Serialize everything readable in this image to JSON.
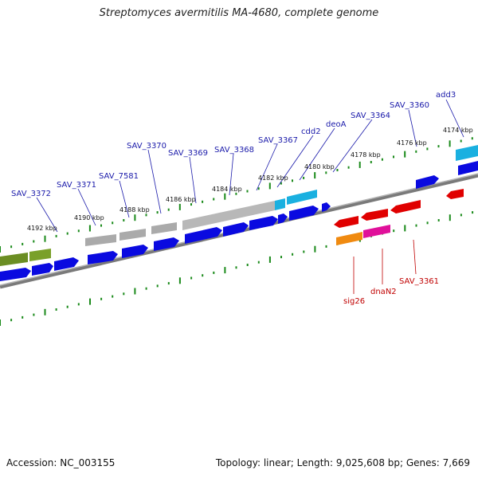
{
  "title": "Streptomyces avermitilis MA-4680, complete genome",
  "footer": {
    "accession": "Accession: NC_003155",
    "topology": "Topology: linear; Length: 9,025,608 bp; Genes: 7,669"
  },
  "scale_ticks": [
    "4192 kbp",
    "4190 kbp",
    "4188 kbp",
    "4186 kbp",
    "4184 kbp",
    "4182 kbp",
    "4180 kbp",
    "4178 kbp",
    "4176 kbp",
    "4174 kbp"
  ],
  "forward_gene_labels": [
    "SAV_3372",
    "SAV_3371",
    "SAV_7581",
    "SAV_3370",
    "SAV_3369",
    "SAV_3368",
    "SAV_3367",
    "cdd2",
    "deoA",
    "SAV_3364",
    "SAV_3360",
    "add3"
  ],
  "reverse_gene_labels": [
    "sig26",
    "dnaN2",
    "SAV_3361"
  ],
  "colors": {
    "forward_cds": "#0a0ae0",
    "reverse_cds": "#e00000",
    "gray_feature": "#b0b0b0",
    "olive_feature": "#6b8e23",
    "cyan_feature": "#1ab0e0",
    "orange_feature": "#f08a10",
    "magenta_feature": "#e0109a",
    "backbone": "#808080",
    "tick_green": "#1a8a1a"
  }
}
